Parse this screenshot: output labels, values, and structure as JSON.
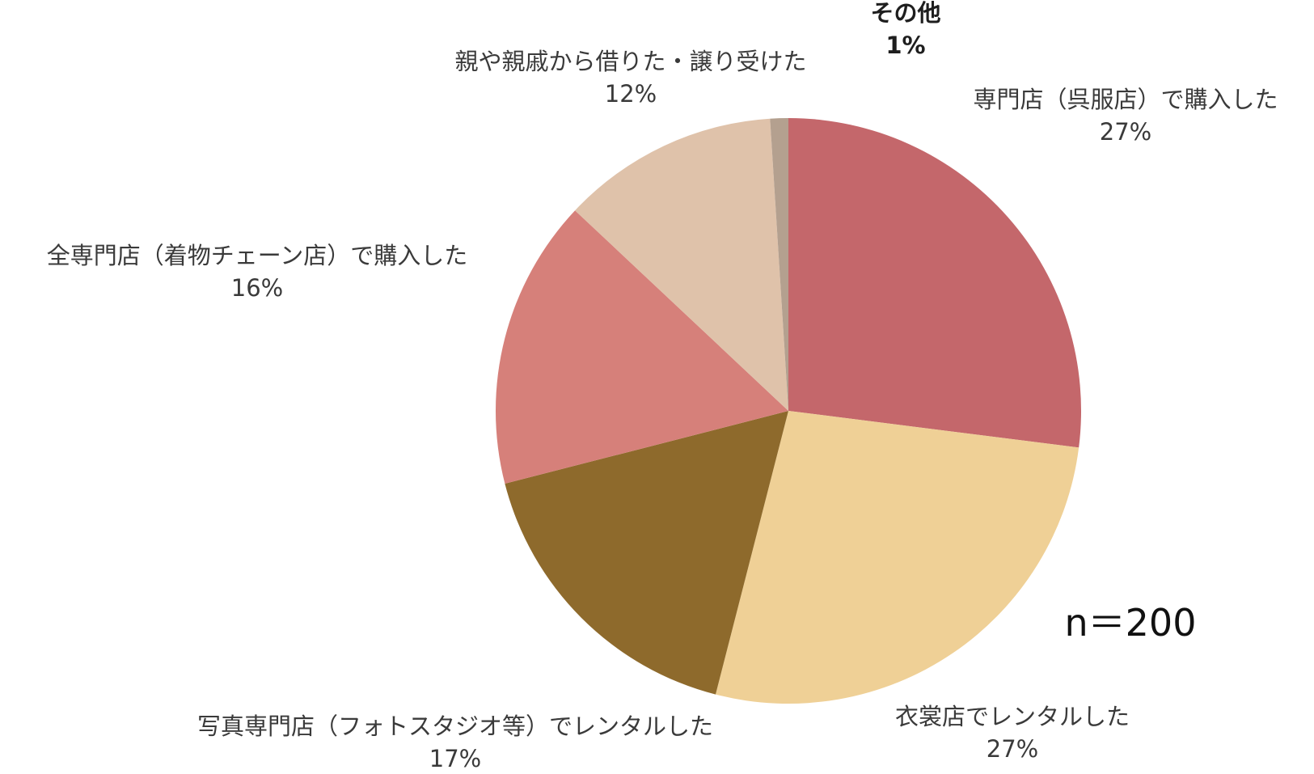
{
  "chart_data": {
    "type": "pie",
    "title": "",
    "note": "n＝200",
    "start_angle_deg": 0,
    "direction": "clockwise",
    "slices": [
      {
        "label": "専門店（呉服店）で購入した",
        "value": 27,
        "value_label": "27%",
        "color": "#c4676b"
      },
      {
        "label": "衣裳店でレンタルした",
        "value": 27,
        "value_label": "27%",
        "color": "#efd096"
      },
      {
        "label": "写真専門店（フォトスタジオ等）でレンタルした",
        "value": 17,
        "value_label": "17%",
        "color": "#8e6a2c"
      },
      {
        "label": "全専門店（着物チェーン店）で購入した",
        "value": 16,
        "value_label": "16%",
        "color": "#d6807a"
      },
      {
        "label": "親や親戚から借りた・譲り受けた",
        "value": 12,
        "value_label": "12%",
        "color": "#dfc2aa"
      },
      {
        "label": "その他",
        "value": 1,
        "value_label": "1%",
        "color": "#b4a08f",
        "bold": true
      }
    ]
  }
}
